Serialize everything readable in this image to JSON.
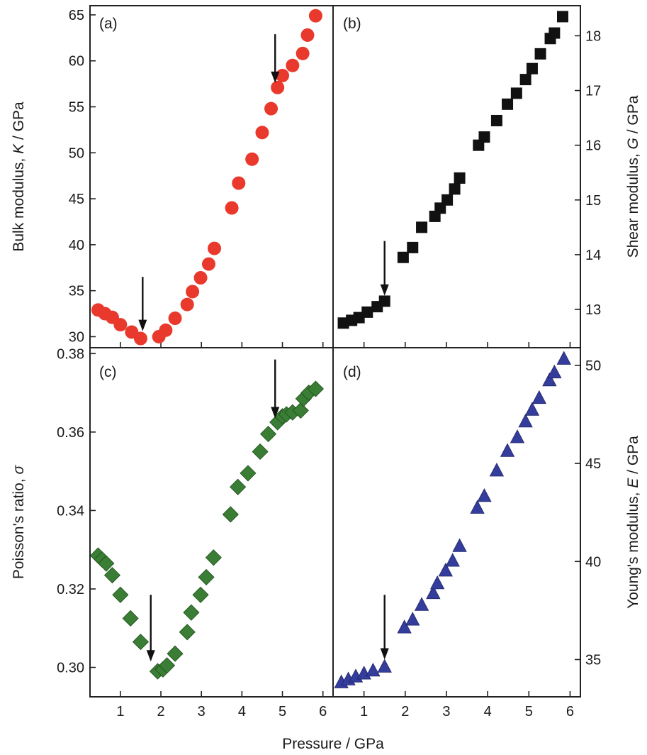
{
  "figure": {
    "x_axis_title": "Pressure / GPa"
  },
  "colors": {
    "a": "#e8392c",
    "b": "#111111",
    "c": "#3a7d34",
    "d": "#343d9c"
  },
  "chart_data": [
    {
      "panel": "a",
      "label": "(a)",
      "type": "scatter",
      "marker": "circle",
      "ylabel_pre": "Bulk modulus, ",
      "ylabel_var": "K",
      "ylabel_post": " / GPa",
      "y_axis_side": "left",
      "xlim": [
        0.25,
        6.25
      ],
      "ylim": [
        28.8,
        66
      ],
      "yticks": [
        30,
        35,
        40,
        45,
        50,
        55,
        60,
        65
      ],
      "ytick_labels": [
        "30",
        "35",
        "40",
        "45",
        "50",
        "55",
        "60",
        "65"
      ],
      "x": [
        0.45,
        0.62,
        0.8,
        1.0,
        1.28,
        1.5,
        1.95,
        2.12,
        2.35,
        2.65,
        2.78,
        2.98,
        3.18,
        3.32,
        3.75,
        3.92,
        4.25,
        4.5,
        4.72,
        4.88,
        5.0,
        5.25,
        5.5,
        5.62,
        5.82
      ],
      "y": [
        32.9,
        32.5,
        32.1,
        31.3,
        30.5,
        29.8,
        30.0,
        30.7,
        32.0,
        33.5,
        34.9,
        36.4,
        37.9,
        39.6,
        44.0,
        46.7,
        49.3,
        52.2,
        54.8,
        57.1,
        58.4,
        59.5,
        60.8,
        62.8,
        64.9
      ],
      "arrows": [
        {
          "x": 1.55,
          "y_from": 36.5,
          "y_to": 30.6
        },
        {
          "x": 4.82,
          "y_from": 62.9,
          "y_to": 57.6
        }
      ]
    },
    {
      "panel": "b",
      "label": "(b)",
      "type": "scatter",
      "marker": "square",
      "ylabel_pre": "Shear modulus, ",
      "ylabel_var": "G",
      "ylabel_post": " / GPa",
      "y_axis_side": "right",
      "xlim": [
        0.25,
        6.25
      ],
      "ylim": [
        12.3,
        18.55
      ],
      "yticks": [
        13,
        14,
        15,
        16,
        17,
        18
      ],
      "ytick_labels": [
        "13",
        "14",
        "15",
        "16",
        "17",
        "18"
      ],
      "x": [
        0.5,
        0.7,
        0.88,
        1.08,
        1.32,
        1.5,
        1.95,
        2.18,
        2.4,
        2.72,
        2.85,
        3.02,
        3.2,
        3.32,
        3.78,
        3.92,
        4.22,
        4.48,
        4.7,
        4.92,
        5.08,
        5.28,
        5.52,
        5.62,
        5.82
      ],
      "y": [
        12.75,
        12.8,
        12.85,
        12.95,
        13.05,
        13.15,
        13.95,
        14.13,
        14.5,
        14.7,
        14.85,
        15.0,
        15.2,
        15.4,
        16.0,
        16.15,
        16.45,
        16.75,
        16.95,
        17.2,
        17.4,
        17.67,
        17.95,
        18.05,
        18.35
      ],
      "arrows": [
        {
          "x": 1.5,
          "y_from": 14.25,
          "y_to": 13.25
        }
      ]
    },
    {
      "panel": "c",
      "label": "(c)",
      "type": "scatter",
      "marker": "diamond",
      "ylabel_pre": "Poisson's ratio, ",
      "ylabel_var": "σ",
      "ylabel_post": "",
      "y_axis_side": "left",
      "xlim": [
        0.25,
        6.25
      ],
      "ylim": [
        0.2925,
        0.3815
      ],
      "yticks": [
        0.3,
        0.32,
        0.34,
        0.36,
        0.38
      ],
      "ytick_labels": [
        "0.30",
        "0.32",
        "0.34",
        "0.36",
        "0.38"
      ],
      "x": [
        0.45,
        0.55,
        0.65,
        0.8,
        1.0,
        1.25,
        1.5,
        1.92,
        2.05,
        2.15,
        2.35,
        2.65,
        2.75,
        2.98,
        3.12,
        3.3,
        3.72,
        3.9,
        4.15,
        4.45,
        4.65,
        4.88,
        5.0,
        5.1,
        5.25,
        5.45,
        5.52,
        5.65,
        5.82
      ],
      "y": [
        0.3285,
        0.3275,
        0.3265,
        0.3235,
        0.3185,
        0.3125,
        0.3065,
        0.299,
        0.2995,
        0.3005,
        0.3035,
        0.309,
        0.314,
        0.3185,
        0.323,
        0.328,
        0.339,
        0.346,
        0.3495,
        0.355,
        0.3595,
        0.3625,
        0.364,
        0.3645,
        0.365,
        0.3655,
        0.3685,
        0.37,
        0.371
      ],
      "arrows": [
        {
          "x": 1.75,
          "y_from": 0.3185,
          "y_to": 0.3015
        },
        {
          "x": 4.82,
          "y_from": 0.3785,
          "y_to": 0.3635
        }
      ]
    },
    {
      "panel": "d",
      "label": "(d)",
      "type": "scatter",
      "marker": "triangle",
      "ylabel_pre": "Young's modulus, ",
      "ylabel_var": "E",
      "ylabel_post": " / GPa",
      "y_axis_side": "right",
      "xlim": [
        0.25,
        6.25
      ],
      "ylim": [
        33.1,
        50.9
      ],
      "yticks": [
        35,
        40,
        45,
        50
      ],
      "ytick_labels": [
        "35",
        "40",
        "45",
        "50"
      ],
      "x": [
        0.45,
        0.62,
        0.8,
        1.0,
        1.22,
        1.5,
        1.98,
        2.18,
        2.4,
        2.68,
        2.78,
        2.98,
        3.15,
        3.32,
        3.75,
        3.92,
        4.22,
        4.48,
        4.72,
        4.92,
        5.08,
        5.25,
        5.5,
        5.62,
        5.85
      ],
      "y": [
        33.8,
        33.95,
        34.1,
        34.25,
        34.4,
        34.6,
        36.6,
        37.0,
        37.75,
        38.35,
        38.85,
        39.5,
        40.0,
        40.75,
        42.7,
        43.3,
        44.6,
        45.6,
        46.3,
        47.1,
        47.7,
        48.3,
        49.2,
        49.6,
        50.3
      ],
      "arrows": [
        {
          "x": 1.5,
          "y_from": 38.3,
          "y_to": 35.0
        }
      ]
    }
  ]
}
